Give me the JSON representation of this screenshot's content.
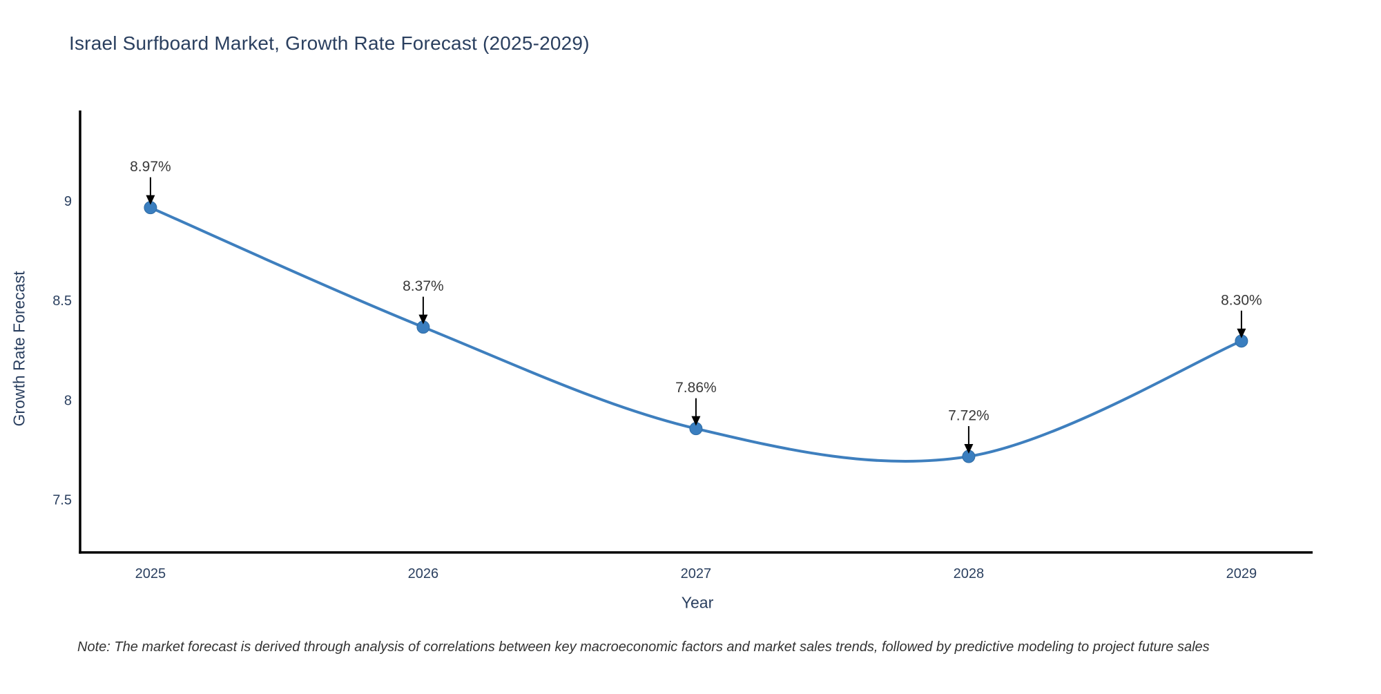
{
  "title": "Israel Surfboard Market, Growth Rate Forecast (2025-2029)",
  "note": "Note: The market forecast is derived through analysis of correlations between key macroeconomic factors and market sales trends, followed by predictive modeling to project future sales",
  "chart_data": {
    "type": "line",
    "title": "Israel Surfboard Market, Growth Rate Forecast (2025-2029)",
    "xlabel": "Year",
    "ylabel": "Growth Rate Forecast",
    "x": [
      2025,
      2026,
      2027,
      2028,
      2029
    ],
    "series": [
      {
        "name": "Growth Rate Forecast",
        "values": [
          8.97,
          8.37,
          7.86,
          7.72,
          8.3
        ]
      }
    ],
    "point_labels": [
      "8.97%",
      "8.37%",
      "7.86%",
      "7.72%",
      "8.30%"
    ],
    "xticks": [
      "2025",
      "2026",
      "2027",
      "2028",
      "2029"
    ],
    "xtick_values": [
      2025,
      2026,
      2027,
      2028,
      2029
    ],
    "yticks": [
      "7.5",
      "8",
      "8.5",
      "9"
    ],
    "ytick_values": [
      7.5,
      8,
      8.5,
      9
    ],
    "xlim": [
      2024.742,
      2029.261
    ],
    "ylim": [
      7.238,
      9.458
    ],
    "grid": false,
    "legend": false,
    "line_shape": "spline",
    "annotations_have_arrows": true,
    "colors": {
      "line": "#3e7fbe",
      "marker_fill": "#3a7ebf",
      "marker_edge": "#2f6ba3",
      "axis_line": "#000000",
      "tick_text": "#2a3f5f",
      "annotation_text": "#383838",
      "annotation_arrow": "#000000",
      "title_text": "#2a3f5f",
      "background": "#ffffff"
    }
  }
}
